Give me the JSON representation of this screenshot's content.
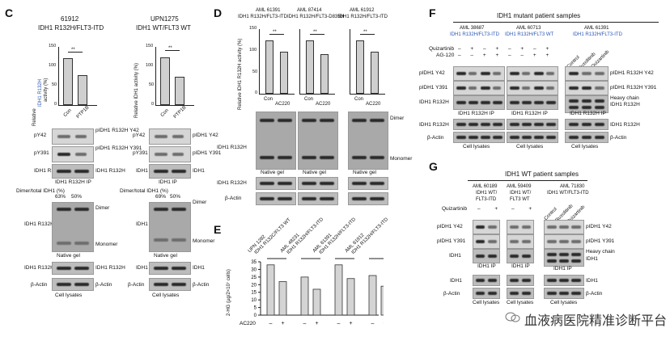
{
  "panels": {
    "C": "C",
    "D": "D",
    "E": "E",
    "F": "F",
    "G": "G"
  },
  "c": {
    "left": {
      "id": "61912",
      "genotype": "IDH1 R132H/FLT3-ITD",
      "ylabel_1": "Relative",
      "ylabel_2": "IDH1 R132H",
      "ylabel_3": "activity (%)",
      "categories": [
        "Con",
        "PTP1B"
      ],
      "values": [
        100,
        62
      ],
      "sig": "**",
      "yticks": [
        "150",
        "100",
        "50",
        "0"
      ],
      "rows": [
        "pY42",
        "pY391",
        "IDH1 R132H"
      ],
      "right_labels": [
        "pIDH1 R132H Y42",
        "pIDH1 R132H Y391",
        "IDH1 R132H"
      ],
      "ip": "IDH1 R132H IP",
      "dimer_label": "Dimer/total IDH1 (%)",
      "pct": [
        "63%",
        "50%"
      ],
      "native_label": "IDH1 R132H",
      "dimer": "Dimer",
      "monomer": "Monomer",
      "native_gel": "Native gel",
      "lys_rows": [
        "IDH1 R132H",
        "β-Actin"
      ],
      "lysates": "Cell lysates"
    },
    "right": {
      "id": "UPN1275",
      "genotype": "IDH1 WT/FLT3 WT",
      "ylabel_1": "Relative IDH1 activity (%)",
      "categories": [
        "Con",
        "PTP1B"
      ],
      "values": [
        100,
        58
      ],
      "sig": "**",
      "yticks": [
        "150",
        "100",
        "50",
        "0"
      ],
      "rows": [
        "pY42",
        "pY391",
        "IDH1"
      ],
      "right_labels": [
        "pIDH1 Y42",
        "pIDH1 Y391",
        "IDH1"
      ],
      "ip": "IDH1 IP",
      "dimer_label": "Dimer/total IDH1 (%)",
      "pct": [
        "69%",
        "50%"
      ],
      "native_label": "IDH1",
      "dimer": "Dimer",
      "monomer": "Monomer",
      "native_gel": "Native gel",
      "lys_rows": [
        "IDH1",
        "β-Actin"
      ],
      "lysates": "Cell lysates"
    }
  },
  "d": {
    "ylabel": "Relative IDH1 R132H activity (%)",
    "yticks": [
      "150",
      "100",
      "50",
      "0"
    ],
    "groups": [
      {
        "id": "AML 61391",
        "genotype": "IDH1 R132H/FLT3-ITD",
        "values": [
          100,
          79
        ],
        "sig": "**"
      },
      {
        "id": "AML 87414",
        "genotype": "IDH1 R132H/FLT3-D835H",
        "values": [
          100,
          74
        ],
        "sig": "**"
      },
      {
        "id": "AML 61912",
        "genotype": "IDH1 R132H/FLT3-ITD",
        "values": [
          100,
          79
        ],
        "sig": "**"
      }
    ],
    "categories": [
      "Con",
      "AC220"
    ],
    "native_row": "IDH1 R132H",
    "dimer": "Dimer",
    "monomer": "Monomer",
    "native_gel": "Native gel",
    "lys_rows": [
      "IDH1 R132H",
      "β-Actin"
    ]
  },
  "e": {
    "ylabel": "2-HG (µg/2×10⁷ cells)",
    "yticks": [
      "35",
      "30",
      "25",
      "20",
      "15",
      "10",
      "5",
      "0"
    ],
    "groups": [
      {
        "label_1": "UPN 1282",
        "label_2": "IDH1 R132C/FLT3 WT"
      },
      {
        "label_1": "AML 48231",
        "label_2": "IDH1 R132H/FLT3-ITD"
      },
      {
        "label_1": "AML 61391",
        "label_2": "IDH1 R132H/FLT3-ITD"
      },
      {
        "label_1": "AML 61912",
        "label_2": "IDH1 R132H/FLT3-ITD"
      }
    ],
    "treatment": "AC220",
    "minus": "–",
    "plus": "+"
  },
  "chart_data": {
    "type": "bar",
    "categories": [
      "UPN 1282 –",
      "UPN 1282 +",
      "AML 48231 –",
      "AML 48231 +",
      "AML 61391 –",
      "AML 61391 +",
      "AML 61912 –",
      "AML 61912 +"
    ],
    "values": [
      33,
      22,
      25,
      17,
      33,
      24,
      26,
      19
    ],
    "xlabel": "AC220",
    "ylabel": "2-HG (µg/2×10⁷ cells)",
    "ylim": [
      0,
      35
    ]
  },
  "f": {
    "title": "IDH1 mutant patient samples",
    "samples": [
      {
        "id": "AML 38687",
        "genotype": "IDH1 R132H/FLT3-ITD"
      },
      {
        "id": "AML 60713",
        "genotype": "IDH1 R132H/FLT3 WT"
      },
      {
        "id": "AML 61391",
        "genotype": "IDH1 R132H/FLT3-ITD"
      }
    ],
    "treat_rows": [
      "Quizartinib",
      "AG-120"
    ],
    "right_treat": [
      "Control",
      "Ruxolitinib",
      "Quizartinib"
    ],
    "rows": [
      "pIDH1 Y42",
      "pIDH1 Y391",
      "IDH1 R132H"
    ],
    "right_labels": [
      "pIDH1 R132H Y42",
      "pIDH1 R132H Y391",
      "Heavy chain",
      "IDH1 R132H"
    ],
    "ip": "IDH1 R132H IP",
    "lys_rows": [
      "IDH1 R132H",
      "β-Actin"
    ],
    "lys_right": [
      "IDH1 R132H",
      "β-Actin"
    ],
    "lysates": "Cell lysates"
  },
  "g": {
    "title": "IDH1 WT patient samples",
    "samples": [
      {
        "id": "AML 60189",
        "l2": "IDH1 WT/",
        "l3": "FLT3-ITD"
      },
      {
        "id": "AML 59409",
        "l2": "IDH1 WT/",
        "l3": "FLT3 WT"
      },
      {
        "id": "AML 71830",
        "l2": "IDH1 WT/FLT3-ITD",
        "l3": ""
      }
    ],
    "treat_row": "Quizartinib",
    "right_treat": [
      "Control",
      "Ruxolitinib",
      "Quizartinib"
    ],
    "rows": [
      "pIDH1 Y42",
      "pIDH1 Y391",
      "IDH1"
    ],
    "right_labels": [
      "pIDH1 Y42",
      "pIDH1 Y391",
      "Heavy chain",
      "IDH1"
    ],
    "ip": "IDH1 IP",
    "lys_rows": [
      "IDH1",
      "β-Actin"
    ],
    "lys_right": [
      "IDH1",
      "β-Actin"
    ],
    "lysates": "Cell lysates"
  },
  "watermark": "血液病医院精准诊断平台"
}
